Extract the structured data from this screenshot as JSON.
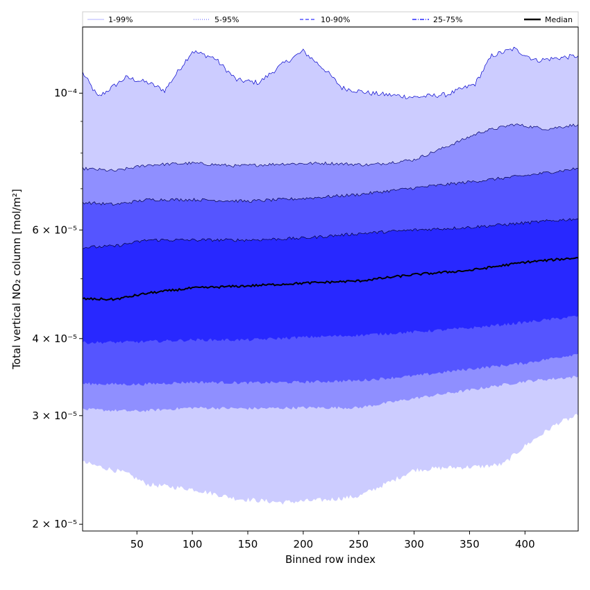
{
  "chart_data": {
    "type": "area",
    "title": "",
    "xlabel": "Binned row index",
    "ylabel": "Total vertical NO₂ column [mol/m²]",
    "x_range": [
      1,
      448
    ],
    "ylim": [
      1.95e-05,
      0.000128
    ],
    "y_scale": "log",
    "grid": false,
    "legend_placement": "top",
    "x_ticks": [
      {
        "value": 50,
        "label": "50"
      },
      {
        "value": 100,
        "label": "100"
      },
      {
        "value": 150,
        "label": "150"
      },
      {
        "value": 200,
        "label": "200"
      },
      {
        "value": 250,
        "label": "250"
      },
      {
        "value": 300,
        "label": "300"
      },
      {
        "value": 350,
        "label": "350"
      },
      {
        "value": 400,
        "label": "400"
      }
    ],
    "y_ticks": [
      {
        "value": 2e-05,
        "label": "2 × 10⁻⁵"
      },
      {
        "value": 3e-05,
        "label": "3 × 10⁻⁵"
      },
      {
        "value": 4e-05,
        "label": "4 × 10⁻⁵"
      },
      {
        "value": 6e-05,
        "label": "6 × 10⁻⁵"
      },
      {
        "value": 0.0001,
        "label": "10⁻⁴"
      }
    ],
    "bands": [
      {
        "name": "1-99%",
        "fill": "#ccccff",
        "line_color": "#0000cc",
        "line_style": "solid",
        "upper": [
          [
            1,
            0.000108
          ],
          [
            15,
            9.85e-05
          ],
          [
            40,
            0.000106
          ],
          [
            60,
            0.000104
          ],
          [
            75,
            0.000101
          ],
          [
            100,
            0.000117
          ],
          [
            120,
            0.000114
          ],
          [
            140,
            0.000105
          ],
          [
            160,
            0.000104
          ],
          [
            180,
            0.000111
          ],
          [
            200,
            0.000117
          ],
          [
            220,
            0.000109
          ],
          [
            235,
            0.000102
          ],
          [
            260,
            0.0001
          ],
          [
            300,
            9.85e-05
          ],
          [
            330,
            9.95e-05
          ],
          [
            355,
            0.0001035
          ],
          [
            370,
            0.000115
          ],
          [
            390,
            0.000118
          ],
          [
            410,
            0.000113
          ],
          [
            448,
            0.000115
          ]
        ],
        "lower": [
          [
            1,
            2.52e-05
          ],
          [
            40,
            2.42e-05
          ],
          [
            60,
            2.32e-05
          ],
          [
            100,
            2.28e-05
          ],
          [
            140,
            2.2e-05
          ],
          [
            180,
            2.17e-05
          ],
          [
            220,
            2.19e-05
          ],
          [
            250,
            2.22e-05
          ],
          [
            280,
            2.35e-05
          ],
          [
            300,
            2.45e-05
          ],
          [
            330,
            2.47e-05
          ],
          [
            360,
            2.48e-05
          ],
          [
            380,
            2.5e-05
          ],
          [
            400,
            2.68e-05
          ],
          [
            430,
            2.92e-05
          ],
          [
            448,
            3e-05
          ]
        ]
      },
      {
        "name": "5-95%",
        "fill": "#8f8fff",
        "line_color": "#000066",
        "line_style": "solid",
        "upper": [
          [
            1,
            7.55e-05
          ],
          [
            30,
            7.48e-05
          ],
          [
            60,
            7.65e-05
          ],
          [
            100,
            7.7e-05
          ],
          [
            140,
            7.62e-05
          ],
          [
            180,
            7.68e-05
          ],
          [
            220,
            7.7e-05
          ],
          [
            260,
            7.65e-05
          ],
          [
            300,
            7.8e-05
          ],
          [
            330,
            8.2e-05
          ],
          [
            360,
            8.65e-05
          ],
          [
            390,
            8.9e-05
          ],
          [
            420,
            8.75e-05
          ],
          [
            448,
            8.9e-05
          ]
        ],
        "lower": [
          [
            1,
            3.07e-05
          ],
          [
            50,
            3.05e-05
          ],
          [
            100,
            3.09e-05
          ],
          [
            150,
            3.08e-05
          ],
          [
            200,
            3.09e-05
          ],
          [
            250,
            3.09e-05
          ],
          [
            300,
            3.2e-05
          ],
          [
            350,
            3.3e-05
          ],
          [
            400,
            3.41e-05
          ],
          [
            448,
            3.47e-05
          ]
        ]
      },
      {
        "name": "10-90%",
        "fill": "#5555ff",
        "line_color": "#000044",
        "line_style": "solid",
        "upper": [
          [
            1,
            6.65e-05
          ],
          [
            30,
            6.6e-05
          ],
          [
            60,
            6.72e-05
          ],
          [
            100,
            6.72e-05
          ],
          [
            150,
            6.68e-05
          ],
          [
            200,
            6.75e-05
          ],
          [
            250,
            6.85e-05
          ],
          [
            300,
            7.02e-05
          ],
          [
            350,
            7.18e-05
          ],
          [
            400,
            7.35e-05
          ],
          [
            448,
            7.55e-05
          ]
        ],
        "lower": [
          [
            1,
            3.38e-05
          ],
          [
            50,
            3.37e-05
          ],
          [
            100,
            3.4e-05
          ],
          [
            150,
            3.39e-05
          ],
          [
            200,
            3.4e-05
          ],
          [
            250,
            3.42e-05
          ],
          [
            300,
            3.48e-05
          ],
          [
            350,
            3.57e-05
          ],
          [
            400,
            3.65e-05
          ],
          [
            448,
            3.78e-05
          ]
        ]
      },
      {
        "name": "25-75%",
        "fill": "#2828ff",
        "line_color": "#000033",
        "line_style": "solid",
        "upper": [
          [
            1,
            5.62e-05
          ],
          [
            30,
            5.65e-05
          ],
          [
            60,
            5.78e-05
          ],
          [
            100,
            5.78e-05
          ],
          [
            150,
            5.78e-05
          ],
          [
            200,
            5.82e-05
          ],
          [
            250,
            5.92e-05
          ],
          [
            300,
            6e-05
          ],
          [
            350,
            6.06e-05
          ],
          [
            400,
            6.16e-05
          ],
          [
            448,
            6.26e-05
          ]
        ],
        "lower": [
          [
            1,
            3.94e-05
          ],
          [
            50,
            3.95e-05
          ],
          [
            100,
            3.98e-05
          ],
          [
            150,
            3.98e-05
          ],
          [
            200,
            4.02e-05
          ],
          [
            250,
            4.05e-05
          ],
          [
            300,
            4.1e-05
          ],
          [
            350,
            4.16e-05
          ],
          [
            400,
            4.25e-05
          ],
          [
            448,
            4.35e-05
          ]
        ]
      }
    ],
    "median": {
      "name": "Median",
      "color": "#000000",
      "points": [
        [
          1,
          4.64e-05
        ],
        [
          30,
          4.63e-05
        ],
        [
          60,
          4.74e-05
        ],
        [
          100,
          4.83e-05
        ],
        [
          150,
          4.87e-05
        ],
        [
          200,
          4.92e-05
        ],
        [
          250,
          4.96e-05
        ],
        [
          300,
          5.08e-05
        ],
        [
          350,
          5.16e-05
        ],
        [
          400,
          5.32e-05
        ],
        [
          448,
          5.41e-05
        ]
      ]
    },
    "legend": [
      {
        "label": "1-99%",
        "color": "#ccccff",
        "style": "solid"
      },
      {
        "label": "5-95%",
        "color": "#8f8fff",
        "style": "dotted"
      },
      {
        "label": "10-90%",
        "color": "#5555ff",
        "style": "dashed"
      },
      {
        "label": "25-75%",
        "color": "#2828ff",
        "style": "dashdot"
      },
      {
        "label": "Median",
        "color": "#000000",
        "style": "solid"
      }
    ]
  }
}
